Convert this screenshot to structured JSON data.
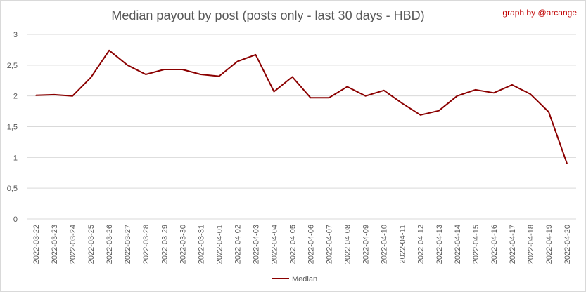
{
  "credit": "graph by @arcange",
  "chart_data": {
    "type": "line",
    "title": "Median payout by post (posts only - last 30 days - HBD)",
    "xlabel": "",
    "ylabel": "",
    "ylim": [
      0,
      3
    ],
    "yticks": [
      "0",
      "0,5",
      "1",
      "1,5",
      "2",
      "2,5",
      "3"
    ],
    "ytick_values": [
      0,
      0.5,
      1,
      1.5,
      2,
      2.5,
      3
    ],
    "grid": "horizontal",
    "legend_position": "bottom",
    "categories": [
      "2022-03-22",
      "2022-03-23",
      "2022-03-24",
      "2022-03-25",
      "2022-03-26",
      "2022-03-27",
      "2022-03-28",
      "2022-03-29",
      "2022-03-30",
      "2022-03-31",
      "2022-04-01",
      "2022-04-02",
      "2022-04-03",
      "2022-04-04",
      "2022-04-05",
      "2022-04-06",
      "2022-04-07",
      "2022-04-08",
      "2022-04-09",
      "2022-04-10",
      "2022-04-11",
      "2022-04-12",
      "2022-04-13",
      "2022-04-14",
      "2022-04-15",
      "2022-04-16",
      "2022-04-17",
      "2022-04-18",
      "2022-04-19",
      "2022-04-20"
    ],
    "series": [
      {
        "name": "Median",
        "color": "#8b0000",
        "values": [
          2.01,
          2.02,
          2.0,
          2.3,
          2.74,
          2.5,
          2.35,
          2.43,
          2.43,
          2.35,
          2.32,
          2.56,
          2.67,
          2.07,
          2.31,
          1.97,
          1.97,
          2.15,
          2.0,
          2.09,
          1.88,
          1.69,
          1.76,
          2.0,
          2.1,
          2.05,
          2.18,
          2.03,
          1.74,
          0.9
        ]
      }
    ]
  }
}
